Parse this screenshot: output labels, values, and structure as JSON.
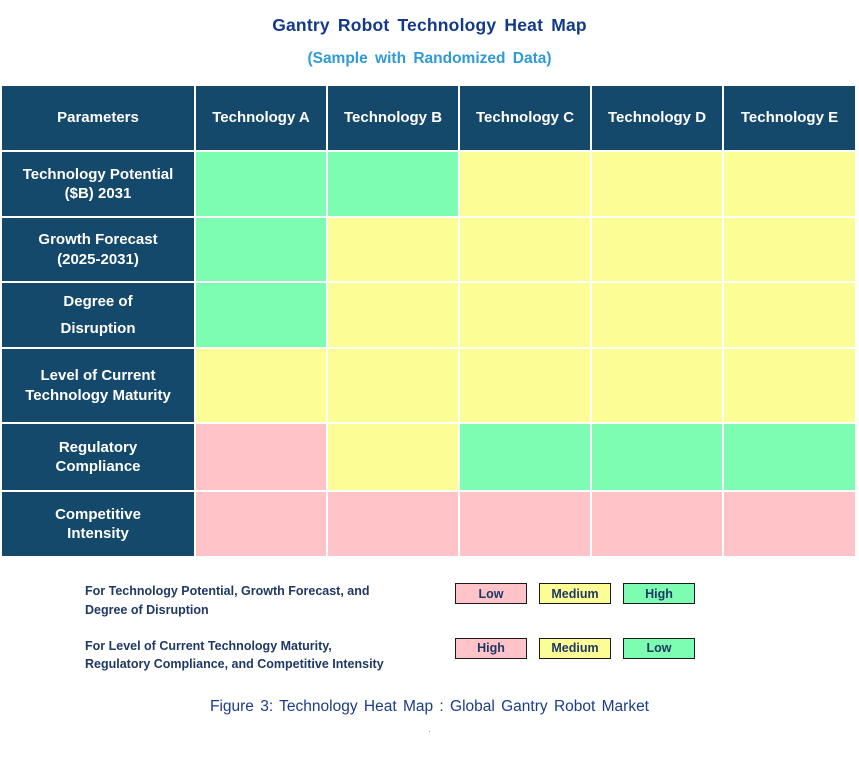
{
  "title": "Gantry Robot Technology Heat Map",
  "subtitle": "(Sample with Randomized Data)",
  "caption": "Figure 3: Technology Heat Map :  Global Gantry Robot Market",
  "caption_dot": ".",
  "colors": {
    "header_bg": "#14496B",
    "header_text": "#FFFFFF",
    "green": "#7DFDB1",
    "yellow": "#FDFD96",
    "pink": "#FFC3C8",
    "title_navy": "#12398A",
    "subtitle_blue": "#2E9BD6",
    "legend_text_navy": "#1F3864",
    "caption_navy": "#1B3C87",
    "legend_box_border": "#1A1A1A"
  },
  "chart_data": {
    "type": "heatmap",
    "corner_label": "Parameters",
    "columns": [
      "Technology A",
      "Technology B",
      "Technology C",
      "Technology D",
      "Technology E"
    ],
    "rows": [
      {
        "label": "Technology Potential ($B) 2031",
        "label_lines": [
          "Technology Potential",
          "($B) 2031"
        ],
        "cell_colors": [
          "green",
          "green",
          "yellow",
          "yellow",
          "yellow"
        ],
        "cell_levels": [
          "High",
          "High",
          "Medium",
          "Medium",
          "Medium"
        ]
      },
      {
        "label": "Growth Forecast (2025-2031)",
        "label_lines": [
          "Growth Forecast",
          "(2025-2031)"
        ],
        "cell_colors": [
          "green",
          "yellow",
          "yellow",
          "yellow",
          "yellow"
        ],
        "cell_levels": [
          "High",
          "Medium",
          "Medium",
          "Medium",
          "Medium"
        ]
      },
      {
        "label": "Degree of Disruption",
        "label_lines": [
          "Degree of",
          "Disruption"
        ],
        "cell_colors": [
          "green",
          "yellow",
          "yellow",
          "yellow",
          "yellow"
        ],
        "cell_levels": [
          "High",
          "Medium",
          "Medium",
          "Medium",
          "Medium"
        ]
      },
      {
        "label": "Level of Current Technology Maturity",
        "label_lines": [
          "Level of Current",
          "Technology Maturity"
        ],
        "cell_colors": [
          "yellow",
          "yellow",
          "yellow",
          "yellow",
          "yellow"
        ],
        "cell_levels": [
          "Medium",
          "Medium",
          "Medium",
          "Medium",
          "Medium"
        ]
      },
      {
        "label": "Regulatory Compliance",
        "label_lines": [
          "Regulatory",
          "Compliance"
        ],
        "cell_colors": [
          "pink",
          "yellow",
          "green",
          "green",
          "green"
        ],
        "cell_levels": [
          "High",
          "Medium",
          "Low",
          "Low",
          "Low"
        ]
      },
      {
        "label": "Competitive Intensity",
        "label_lines": [
          "Competitive",
          "Intensity"
        ],
        "cell_colors": [
          "pink",
          "pink",
          "pink",
          "pink",
          "pink"
        ],
        "cell_levels": [
          "High",
          "High",
          "High",
          "High",
          "High"
        ]
      }
    ],
    "legend_note": "Rows 1-3: green=High, yellow=Medium, pink=Low. Rows 4-6 inverted: green=Low, yellow=Medium, pink=High."
  },
  "legend": {
    "rows": [
      {
        "label_lines": [
          "For Technology Potential, Growth Forecast, and",
          "Degree of Disruption"
        ],
        "items": [
          {
            "text": "Low",
            "color": "pink"
          },
          {
            "text": "Medium",
            "color": "yellow"
          },
          {
            "text": "High",
            "color": "green"
          }
        ]
      },
      {
        "label_lines": [
          "For Level of Current Technology Maturity,",
          "Regulatory Compliance, and Competitive Intensity"
        ],
        "items": [
          {
            "text": "High",
            "color": "pink"
          },
          {
            "text": "Medium",
            "color": "yellow"
          },
          {
            "text": "Low",
            "color": "green"
          }
        ]
      }
    ]
  }
}
